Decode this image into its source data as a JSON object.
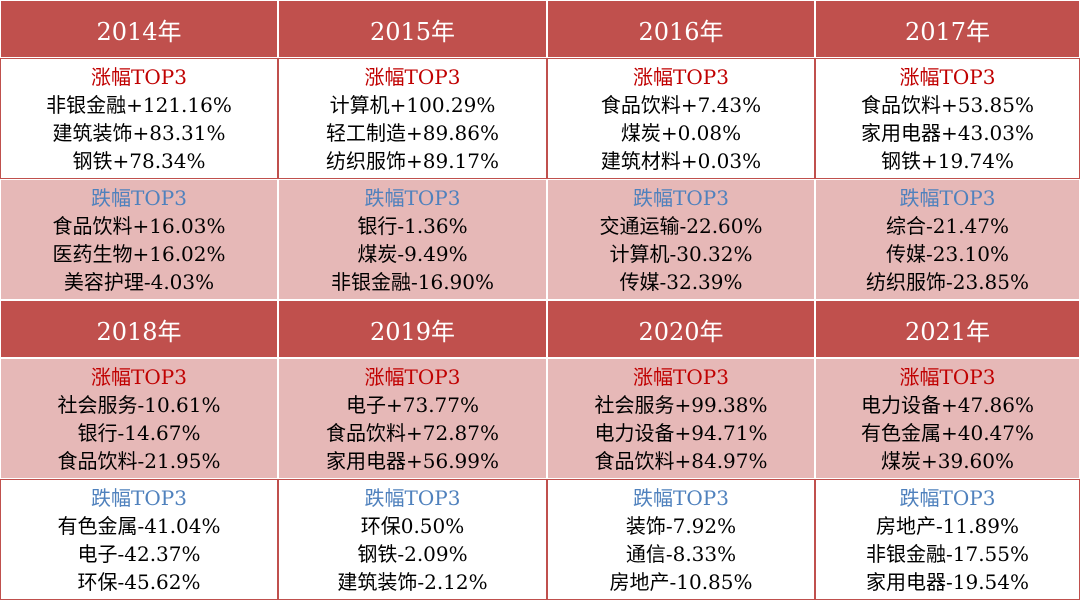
{
  "years": [
    {
      "year": "2014年",
      "gain": {
        "label": "涨幅TOP3",
        "items": [
          "非银金融+121.16%",
          "建筑装饰+83.31%",
          "钢铁+78.34%"
        ]
      },
      "loss": {
        "label": "跌幅TOP3",
        "items": [
          "食品饮料+16.03%",
          "医药生物+16.02%",
          "美容护理-4.03%"
        ]
      }
    },
    {
      "year": "2015年",
      "gain": {
        "label": "涨幅TOP3",
        "items": [
          "计算机+100.29%",
          "轻工制造+89.86%",
          "纺织服饰+89.17%"
        ]
      },
      "loss": {
        "label": "跌幅TOP3",
        "items": [
          "银行-1.36%",
          "煤炭-9.49%",
          "非银金融-16.90%"
        ]
      }
    },
    {
      "year": "2016年",
      "gain": {
        "label": "涨幅TOP3",
        "items": [
          "食品饮料+7.43%",
          "煤炭+0.08%",
          "建筑材料+0.03%"
        ]
      },
      "loss": {
        "label": "跌幅TOP3",
        "items": [
          "交通运输-22.60%",
          "计算机-30.32%",
          "传媒-32.39%"
        ]
      }
    },
    {
      "year": "2017年",
      "gain": {
        "label": "涨幅TOP3",
        "items": [
          "食品饮料+53.85%",
          "家用电器+43.03%",
          "钢铁+19.74%"
        ]
      },
      "loss": {
        "label": "跌幅TOP3",
        "items": [
          "综合-21.47%",
          "传媒-23.10%",
          "纺织服饰-23.85%"
        ]
      }
    },
    {
      "year": "2018年",
      "gain": {
        "label": "涨幅TOP3",
        "items": [
          "社会服务-10.61%",
          "银行-14.67%",
          "食品饮料-21.95%"
        ]
      },
      "loss": {
        "label": "跌幅TOP3",
        "items": [
          "有色金属-41.04%",
          "电子-42.37%",
          "环保-45.62%"
        ]
      }
    },
    {
      "year": "2019年",
      "gain": {
        "label": "涨幅TOP3",
        "items": [
          "电子+73.77%",
          "食品饮料+72.87%",
          "家用电器+56.99%"
        ]
      },
      "loss": {
        "label": "跌幅TOP3",
        "items": [
          "环保0.50%",
          "钢铁-2.09%",
          "建筑装饰-2.12%"
        ]
      }
    },
    {
      "year": "2020年",
      "gain": {
        "label": "涨幅TOP3",
        "items": [
          "社会服务+99.38%",
          "电力设备+94.71%",
          "食品饮料+84.97%"
        ]
      },
      "loss": {
        "label": "跌幅TOP3",
        "items": [
          "装饰-7.92%",
          "通信-8.33%",
          "房地产-10.85%"
        ]
      }
    },
    {
      "year": "2021年",
      "gain": {
        "label": "涨幅TOP3",
        "items": [
          "电力设备+47.86%",
          "有色金属+40.47%",
          "煤炭+39.60%"
        ]
      },
      "loss": {
        "label": "跌幅TOP3",
        "items": [
          "房地产-11.89%",
          "非银金融-17.55%",
          "家用电器-19.54%"
        ]
      }
    }
  ]
}
